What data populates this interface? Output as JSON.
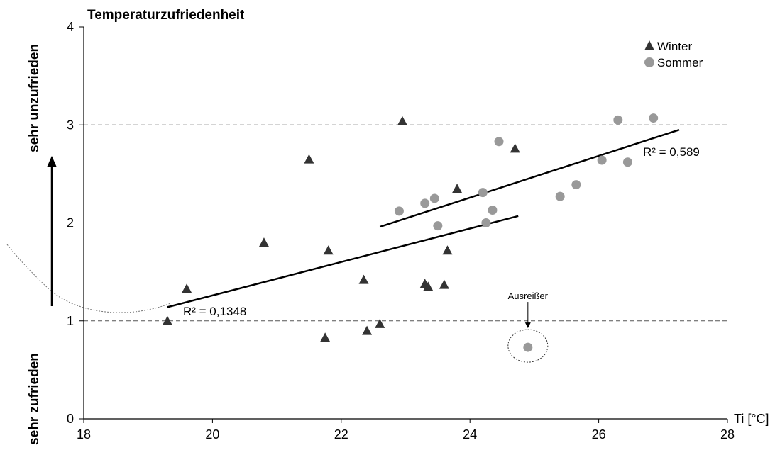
{
  "chart_data": {
    "type": "scatter",
    "title": "Temperaturzufriedenheit",
    "xlabel": "Ti [°C]",
    "ylabel_top": "sehr unzufrieden",
    "ylabel_bottom": "sehr zufrieden",
    "xlim": [
      18,
      28
    ],
    "ylim": [
      0,
      4
    ],
    "x_ticks": [
      "18",
      "20",
      "22",
      "24",
      "26",
      "28"
    ],
    "y_ticks": [
      "0",
      "1",
      "2",
      "3",
      "4"
    ],
    "grid": "horizontal dashed at 1, 2, 3",
    "legend_position": "top-right",
    "series": [
      {
        "name": "Winter",
        "marker": "triangle",
        "color": "#333333",
        "points": [
          {
            "x": 19.3,
            "y": 1.0
          },
          {
            "x": 19.6,
            "y": 1.33
          },
          {
            "x": 20.8,
            "y": 1.8
          },
          {
            "x": 21.5,
            "y": 2.65
          },
          {
            "x": 21.75,
            "y": 0.83
          },
          {
            "x": 21.8,
            "y": 1.72
          },
          {
            "x": 22.35,
            "y": 1.42
          },
          {
            "x": 22.4,
            "y": 0.9
          },
          {
            "x": 22.6,
            "y": 0.97
          },
          {
            "x": 22.95,
            "y": 3.04
          },
          {
            "x": 23.3,
            "y": 1.38
          },
          {
            "x": 23.35,
            "y": 1.35
          },
          {
            "x": 23.6,
            "y": 1.37
          },
          {
            "x": 23.65,
            "y": 1.72
          },
          {
            "x": 23.8,
            "y": 2.35
          },
          {
            "x": 24.7,
            "y": 2.76
          }
        ],
        "trendline": {
          "x": [
            19.3,
            24.75
          ],
          "y": [
            1.14,
            2.07
          ],
          "r2_label": "R² = 0,1348"
        }
      },
      {
        "name": "Sommer",
        "marker": "circle",
        "color": "#999999",
        "points": [
          {
            "x": 22.9,
            "y": 2.12
          },
          {
            "x": 23.3,
            "y": 2.2
          },
          {
            "x": 23.45,
            "y": 2.25
          },
          {
            "x": 23.5,
            "y": 1.97
          },
          {
            "x": 24.2,
            "y": 2.31
          },
          {
            "x": 24.25,
            "y": 2.0
          },
          {
            "x": 24.35,
            "y": 2.13
          },
          {
            "x": 24.45,
            "y": 2.83
          },
          {
            "x": 24.9,
            "y": 0.73
          },
          {
            "x": 25.4,
            "y": 2.27
          },
          {
            "x": 25.65,
            "y": 2.39
          },
          {
            "x": 26.05,
            "y": 2.64
          },
          {
            "x": 26.3,
            "y": 3.05
          },
          {
            "x": 26.45,
            "y": 2.62
          },
          {
            "x": 26.85,
            "y": 3.07
          }
        ],
        "trendline": {
          "x": [
            22.6,
            27.25
          ],
          "y": [
            1.96,
            2.95
          ],
          "r2_label": "R² = 0,589"
        }
      }
    ],
    "annotations": [
      {
        "text": "Ausreißer",
        "x": 24.9,
        "y": 0.73
      }
    ]
  }
}
